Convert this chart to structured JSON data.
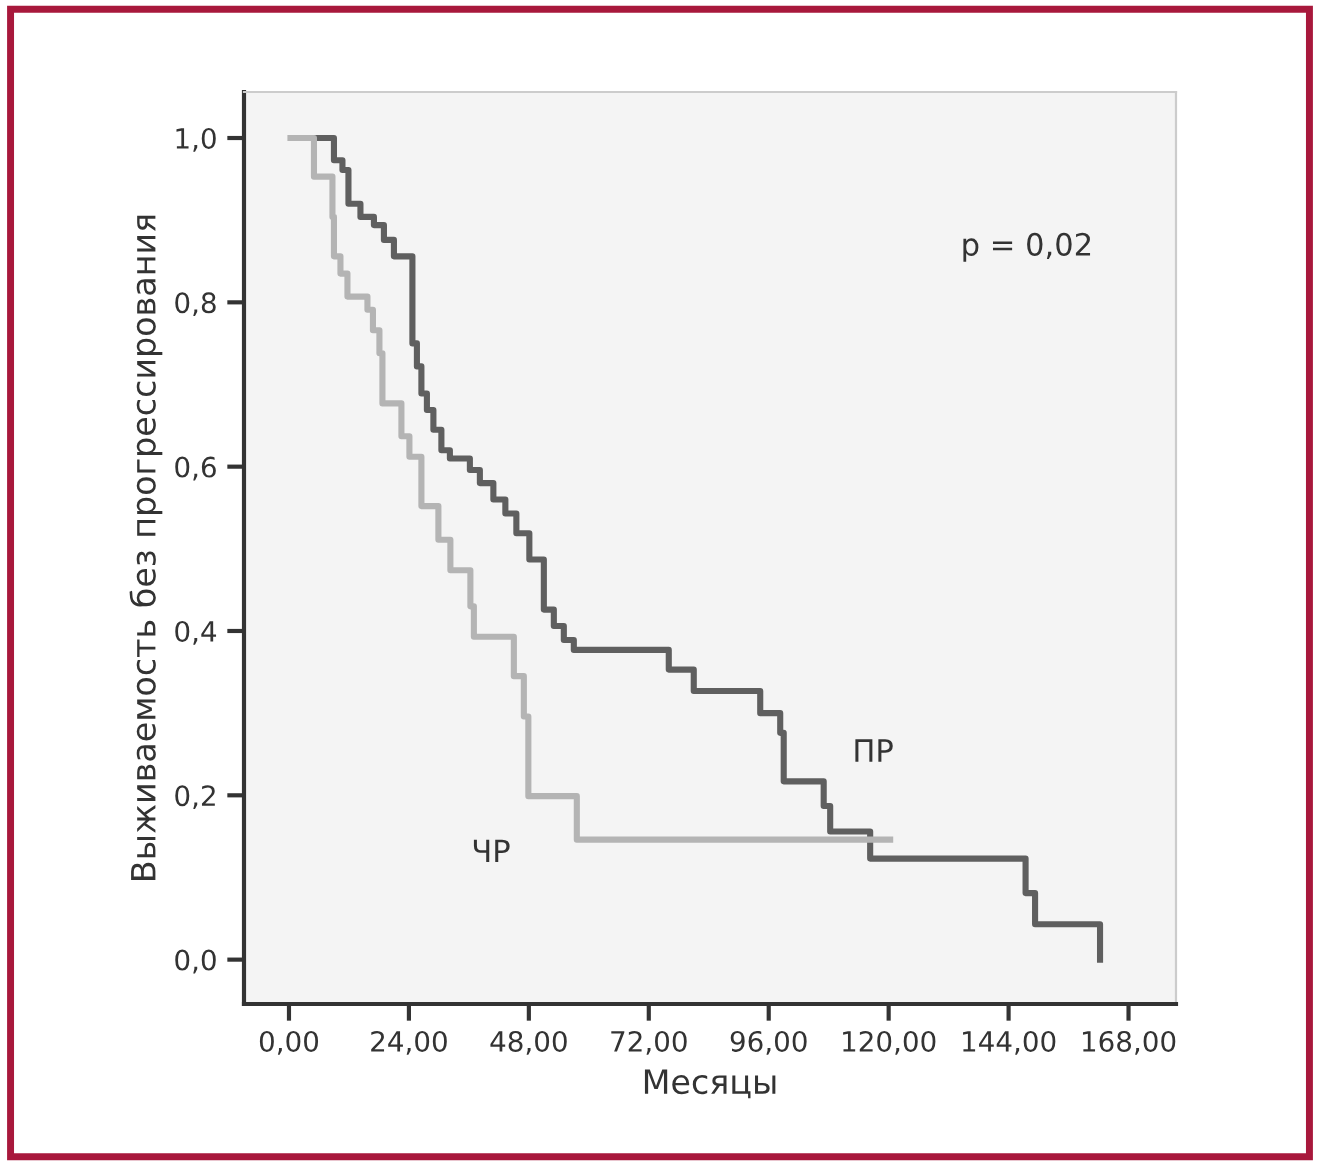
{
  "chart_data": {
    "type": "step",
    "xlabel": "Месяцы",
    "ylabel": "Выживаемость без прогрессирования",
    "xlim": [
      -9,
      177.5
    ],
    "ylim": [
      -0.054,
      1.056
    ],
    "xticks": [
      {
        "value": 0,
        "label": "0,00"
      },
      {
        "value": 24,
        "label": "24,00"
      },
      {
        "value": 48,
        "label": "48,00"
      },
      {
        "value": 72,
        "label": "72,00"
      },
      {
        "value": 96,
        "label": "96,00"
      },
      {
        "value": 120,
        "label": "120,00"
      },
      {
        "value": 144,
        "label": "144,00"
      },
      {
        "value": 168,
        "label": "168,00"
      }
    ],
    "yticks": [
      {
        "value": 0,
        "label": "0,0"
      },
      {
        "value": 0.2,
        "label": "0,2"
      },
      {
        "value": 0.4,
        "label": "0,4"
      },
      {
        "value": 0.6,
        "label": "0,6"
      },
      {
        "value": 0.8,
        "label": "0,8"
      },
      {
        "value": 1,
        "label": "1,0"
      }
    ],
    "grid": false,
    "legend": false,
    "series": [
      {
        "name": "ПР",
        "color": "#5f5f5f",
        "x": [
          1,
          9,
          10.7,
          11.9,
          14.3,
          17,
          19,
          21,
          24.7,
          25.6,
          26.5,
          27.6,
          28.9,
          30.5,
          32.2,
          36.2,
          38.2,
          40.9,
          43.3,
          45.5,
          48.1,
          51,
          53,
          55,
          57,
          76,
          81,
          94.3,
          98.3,
          99,
          107,
          108.3,
          116.3,
          147.4,
          149.3,
          162.3,
          162.3
        ],
        "values": [
          1.0,
          0.973,
          0.961,
          0.92,
          0.904,
          0.894,
          0.876,
          0.856,
          0.75,
          0.722,
          0.689,
          0.669,
          0.645,
          0.62,
          0.61,
          0.596,
          0.58,
          0.56,
          0.543,
          0.519,
          0.487,
          0.426,
          0.406,
          0.389,
          0.377,
          0.353,
          0.327,
          0.3,
          0.276,
          0.217,
          0.187,
          0.156,
          0.123,
          0.081,
          0.043,
          0.0,
          0.0
        ]
      },
      {
        "name": "ЧР",
        "color": "#b4b4b4",
        "x": [
          0.3,
          5,
          8.7,
          9,
          10.3,
          11.7,
          15.7,
          16.8,
          18.1,
          18.7,
          22.5,
          24.1,
          26.5,
          29.9,
          32.3,
          36.3,
          37,
          45,
          47,
          47.9,
          57.6,
          120.3
        ],
        "values": [
          1.0,
          0.953,
          0.904,
          0.856,
          0.835,
          0.807,
          0.791,
          0.766,
          0.738,
          0.677,
          0.637,
          0.612,
          0.552,
          0.511,
          0.474,
          0.43,
          0.393,
          0.345,
          0.296,
          0.199,
          0.146,
          0.146
        ]
      }
    ],
    "annotations": [
      "p = 0,02"
    ]
  }
}
